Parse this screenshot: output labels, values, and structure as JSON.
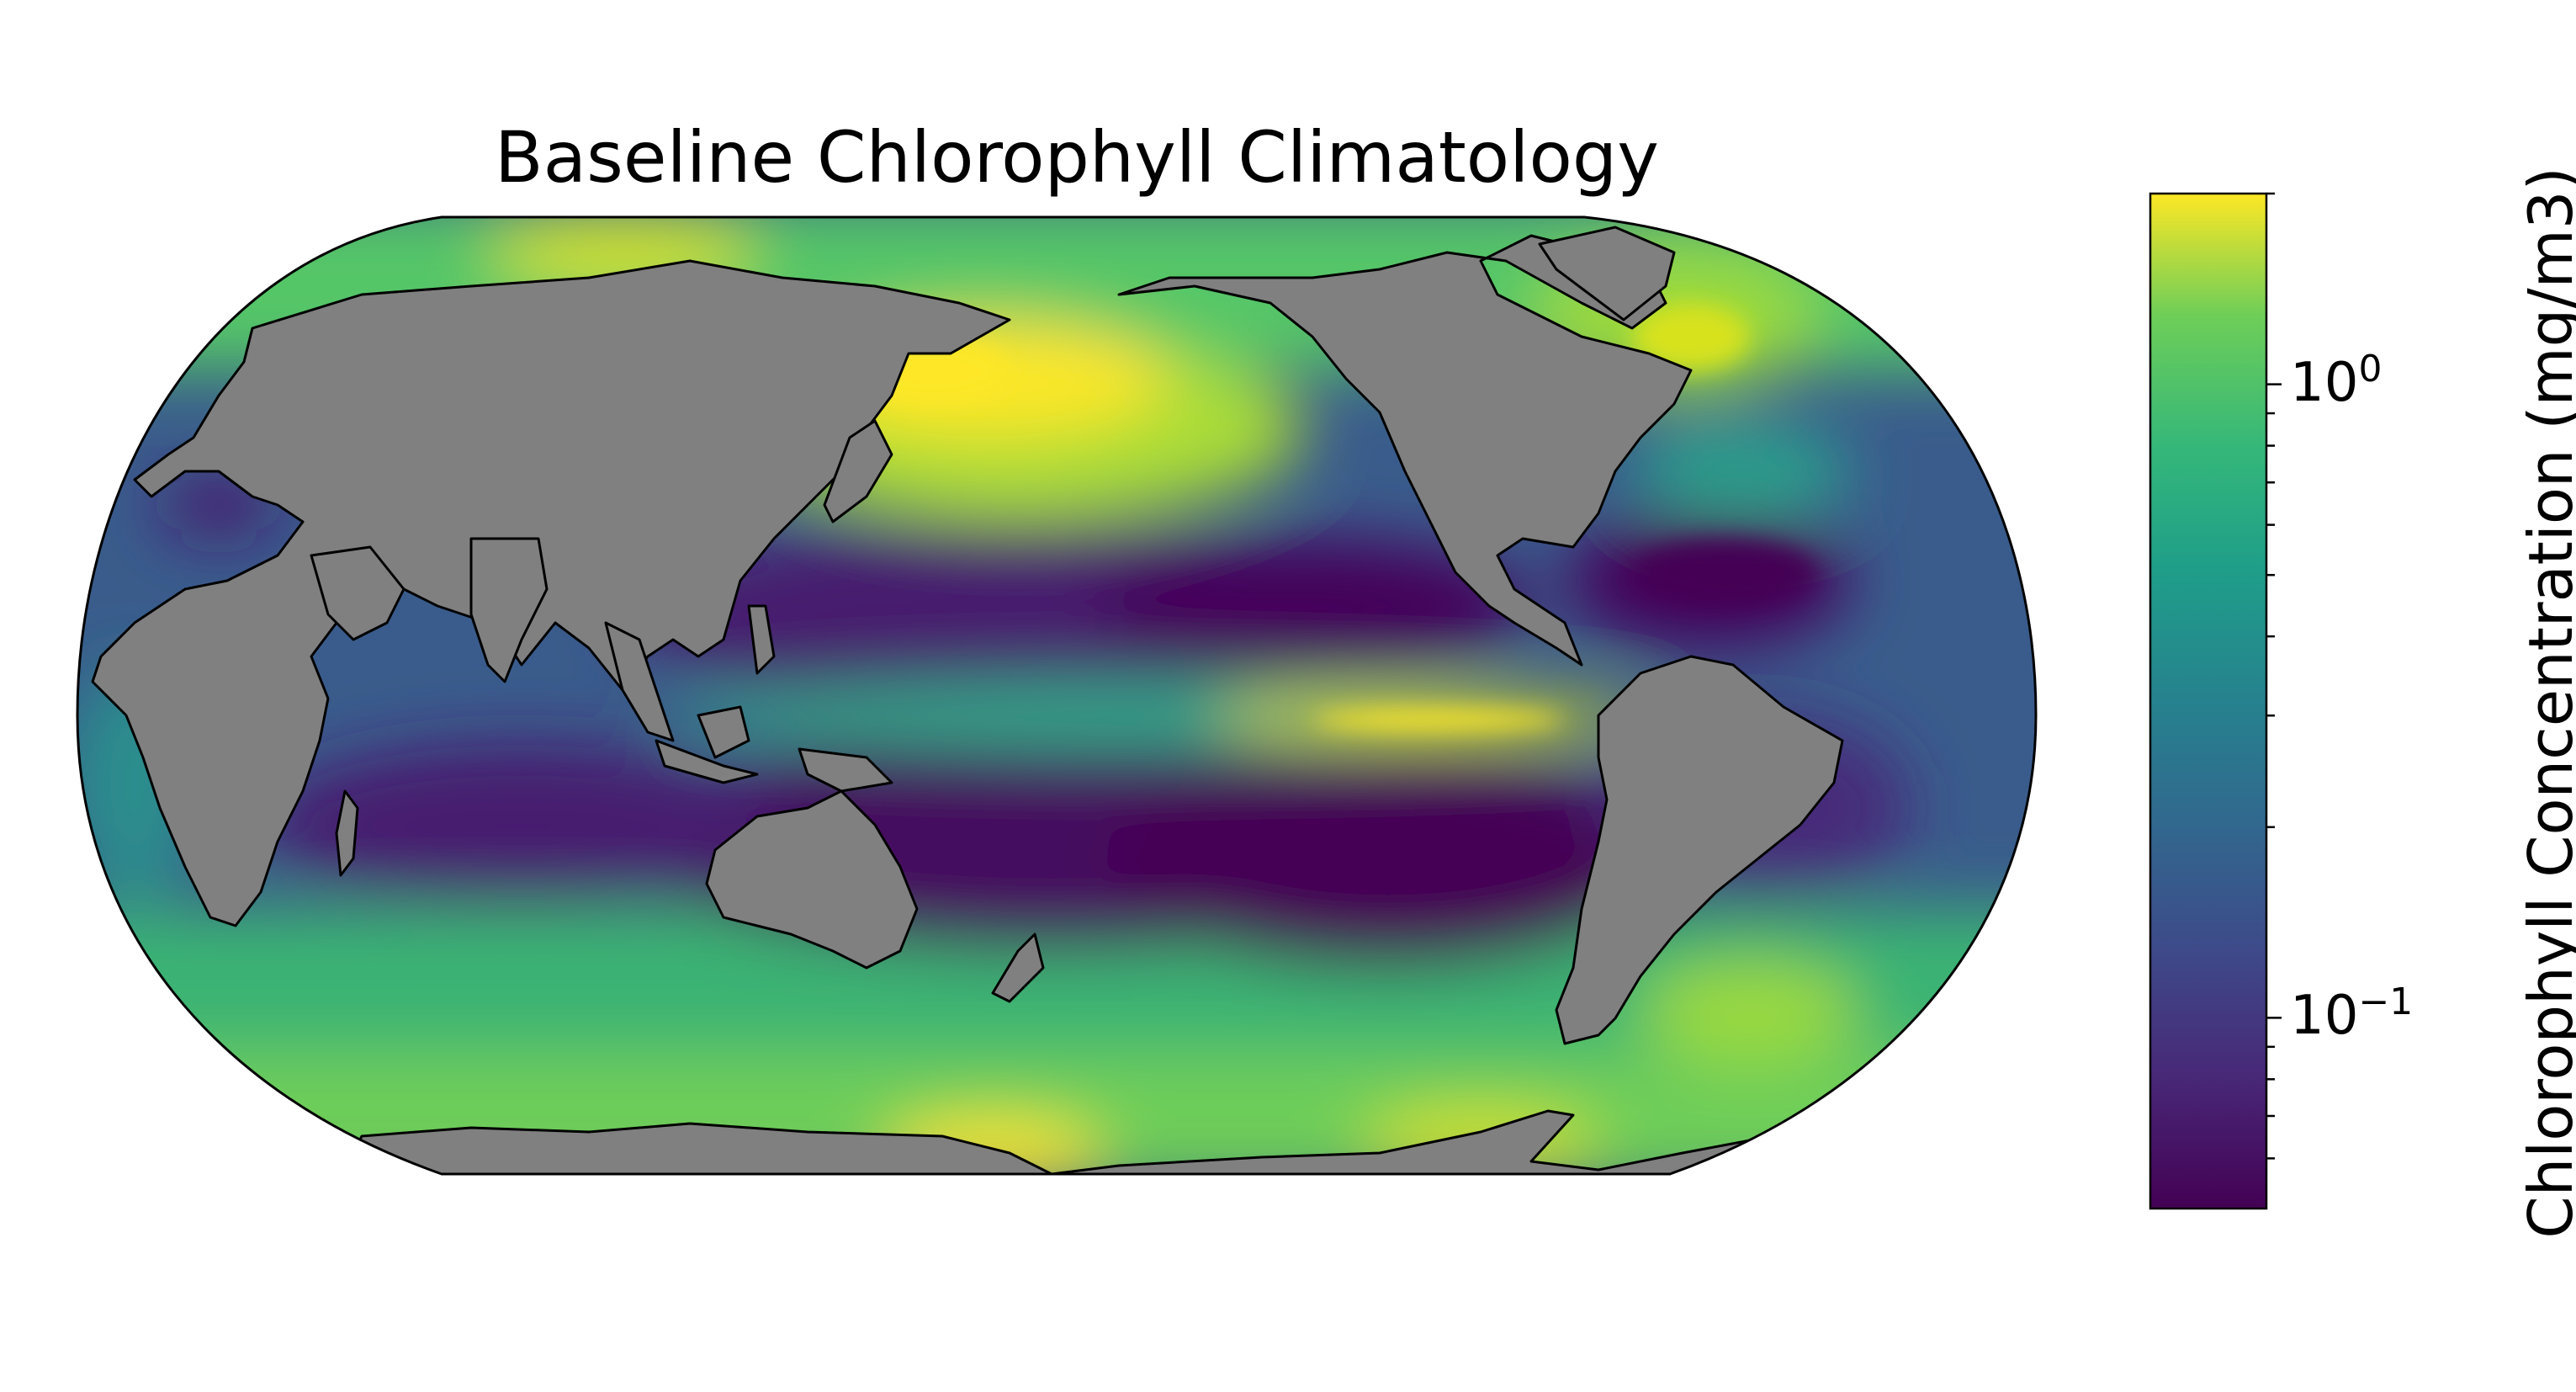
{
  "title": "Baseline Chlorophyll Climatology",
  "projection": "Robinson",
  "colors": {
    "land": "#808080",
    "ocean_low": "#440154",
    "ocean_mid": "#21918c",
    "ocean_high": "#fde725",
    "coastline": "#000000",
    "no_data": "#ffffff"
  },
  "colorbar": {
    "label": "Chlorophyll Concentration (mg/m3)",
    "colormap": "viridis",
    "scale": "log",
    "vmin": 0.05,
    "vmax": 2.0,
    "major_ticks": [
      {
        "base": "10",
        "exponent": "0",
        "value": 1.0
      },
      {
        "base": "10",
        "exponent": "−1",
        "value": 0.1
      }
    ],
    "minor_tick_values": [
      0.06,
      0.07,
      0.08,
      0.09,
      0.2,
      0.3,
      0.4,
      0.5,
      0.6,
      0.7,
      0.8,
      0.9,
      2.0
    ]
  },
  "features": [
    {
      "name": "north-pacific-high",
      "level": "high"
    },
    {
      "name": "equatorial-pacific-tongue",
      "level": "high"
    },
    {
      "name": "north-atlantic-high",
      "level": "high"
    },
    {
      "name": "southern-ocean-band",
      "level": "mid"
    },
    {
      "name": "south-pacific-gyre",
      "level": "low"
    },
    {
      "name": "north-pacific-gyre",
      "level": "low"
    },
    {
      "name": "indian-ocean-gyre",
      "level": "low"
    },
    {
      "name": "north-atlantic-gyre",
      "level": "low"
    }
  ]
}
